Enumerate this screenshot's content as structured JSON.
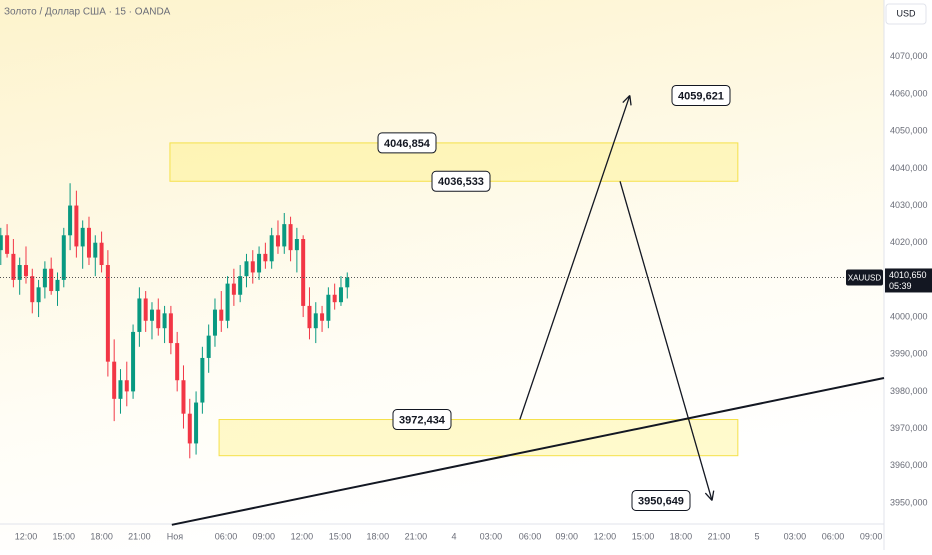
{
  "chart_data": {
    "type": "candlestick",
    "title": "Золото / Доллар США · 15 · OANDA",
    "currency": "USD",
    "symbol": "XAUUSD",
    "last_price": {
      "value": 4010.65,
      "label": "4010,650"
    },
    "countdown": "05:39",
    "up_color": "#089981",
    "down_color": "#f23645",
    "x": [
      -8,
      -6,
      -4,
      -2,
      0,
      2,
      4,
      6,
      8,
      10,
      12,
      14,
      16,
      18,
      20,
      22,
      24,
      26,
      28,
      30,
      32,
      34,
      36,
      38,
      40,
      42,
      44,
      46,
      48,
      50,
      52,
      54,
      56,
      58,
      60,
      62,
      64,
      66,
      68,
      70,
      72,
      74,
      76,
      78,
      80,
      82,
      84,
      86,
      88,
      90,
      92,
      94,
      96,
      98,
      100,
      102
    ],
    "open": [
      4018,
      4022,
      4017,
      4010,
      4014,
      4011,
      4004,
      4008,
      4013,
      4007,
      4010,
      4022,
      4030,
      4019,
      4024,
      4016,
      4020,
      4014,
      3988,
      3978,
      3983,
      3980,
      3996,
      4005,
      3999,
      4002,
      3997,
      4001,
      3993,
      3983,
      3974,
      3966,
      3977,
      3989,
      3995,
      4002,
      3999,
      4009,
      4006,
      4011,
      4015,
      4012,
      4017,
      4015,
      4022,
      4019,
      4025,
      4018,
      4021,
      4003,
      3997,
      4001,
      3999,
      4006,
      4004,
      4008
    ],
    "high": [
      4024,
      4025,
      4021,
      4016,
      4019,
      4013,
      4010,
      4015,
      4016,
      4012,
      4024,
      4036,
      4034,
      4026,
      4027,
      4022,
      4023,
      4018,
      3994,
      3986,
      3988,
      3998,
      4008,
      4007,
      4004,
      4005,
      4003,
      4003,
      3996,
      3987,
      3978,
      3980,
      3992,
      3998,
      4005,
      4007,
      4011,
      4013,
      4014,
      4017,
      4018,
      4019,
      4020,
      4024,
      4026,
      4028,
      4027,
      4024,
      4022,
      4008,
      4004,
      4003,
      4008,
      4009,
      4011,
      4012
    ],
    "low": [
      4014,
      4016,
      4008,
      4006,
      4009,
      4001,
      4000,
      4005,
      4006,
      4003,
      4008,
      4018,
      4016,
      4013,
      4014,
      4011,
      4012,
      3984,
      3972,
      3974,
      3976,
      3978,
      3992,
      3996,
      3994,
      3995,
      3993,
      3990,
      3980,
      3970,
      3962,
      3963,
      3974,
      3985,
      3992,
      3996,
      3997,
      4003,
      4004,
      4008,
      4009,
      4010,
      4013,
      4013,
      4017,
      4017,
      4015,
      4012,
      4000,
      3994,
      3993,
      3996,
      3997,
      4002,
      4003,
      4005
    ],
    "close": [
      4022,
      4017,
      4010,
      4014,
      4011,
      4004,
      4008,
      4013,
      4007,
      4010,
      4022,
      4030,
      4019,
      4024,
      4016,
      4020,
      4014,
      3988,
      3978,
      3983,
      3980,
      3996,
      4005,
      3999,
      4002,
      3997,
      4001,
      3993,
      3983,
      3974,
      3966,
      3977,
      3989,
      3995,
      4002,
      3999,
      4009,
      4006,
      4011,
      4015,
      4012,
      4017,
      4015,
      4022,
      4019,
      4025,
      4018,
      4021,
      4003,
      3997,
      4001,
      3999,
      4006,
      4004,
      4008,
      4010.65
    ],
    "xlim": [
      -8.25,
      272.4
    ],
    "ylim": [
      3945.4,
      4085.3
    ],
    "xticks": [
      {
        "value": 0,
        "label": "12:00"
      },
      {
        "value": 12,
        "label": "15:00"
      },
      {
        "value": 24,
        "label": "18:00"
      },
      {
        "value": 36,
        "label": "21:00"
      },
      {
        "value": 47.3,
        "label": "Ноя"
      },
      {
        "value": 63.5,
        "label": "06:00"
      },
      {
        "value": 75.5,
        "label": "09:00"
      },
      {
        "value": 87.6,
        "label": "12:00"
      },
      {
        "value": 99.7,
        "label": "15:00"
      },
      {
        "value": 111.7,
        "label": "18:00"
      },
      {
        "value": 123.8,
        "label": "21:00"
      },
      {
        "value": 135.9,
        "label": "4"
      },
      {
        "value": 147.6,
        "label": "03:00"
      },
      {
        "value": 160,
        "label": "06:00"
      },
      {
        "value": 171.7,
        "label": "09:00"
      },
      {
        "value": 183.8,
        "label": "12:00"
      },
      {
        "value": 195.9,
        "label": "15:00"
      },
      {
        "value": 207.9,
        "label": "18:00"
      },
      {
        "value": 220,
        "label": "21:00"
      },
      {
        "value": 232.1,
        "label": "5"
      },
      {
        "value": 244.1,
        "label": "03:00"
      },
      {
        "value": 256.2,
        "label": "06:00"
      },
      {
        "value": 268.3,
        "label": "09:00"
      }
    ],
    "yticks": [
      {
        "value": 3950,
        "label": "3950,000"
      },
      {
        "value": 3960,
        "label": "3960,000"
      },
      {
        "value": 3970,
        "label": "3970,000"
      },
      {
        "value": 3980,
        "label": "3980,000"
      },
      {
        "value": 3990,
        "label": "3990,000"
      },
      {
        "value": 4000,
        "label": "4000,000"
      },
      {
        "value": 4010,
        "label": "4010,000"
      },
      {
        "value": 4020,
        "label": "4020,000"
      },
      {
        "value": 4030,
        "label": "4030,000"
      },
      {
        "value": 4040,
        "label": "4040,000"
      },
      {
        "value": 4050,
        "label": "4050,000"
      },
      {
        "value": 4060,
        "label": "4060,000"
      },
      {
        "value": 4070,
        "label": "4070,000"
      }
    ],
    "zones": [
      {
        "x": [
          45.7,
          226
        ],
        "top": {
          "value": 4046.854,
          "label": "4046,854"
        },
        "bottom": {
          "value": 4036.533,
          "label": "4036,533"
        }
      },
      {
        "x": [
          61.3,
          226
        ],
        "top": {
          "value": 3972.434,
          "label": "3972,434"
        },
        "bottom": 3962.7
      }
    ],
    "arrows": [
      {
        "x": [
          156.8,
          191.7
        ],
        "y": [
          3972.434,
          4059.621
        ],
        "label": "4059,621"
      },
      {
        "x": [
          188.6,
          217.8
        ],
        "y": [
          4036.533,
          3950.649
        ],
        "label": "3950,649"
      }
    ],
    "trendline": {
      "x": [
        46.3,
        272.4
      ],
      "y": [
        3944.1,
        3983.6
      ]
    }
  }
}
